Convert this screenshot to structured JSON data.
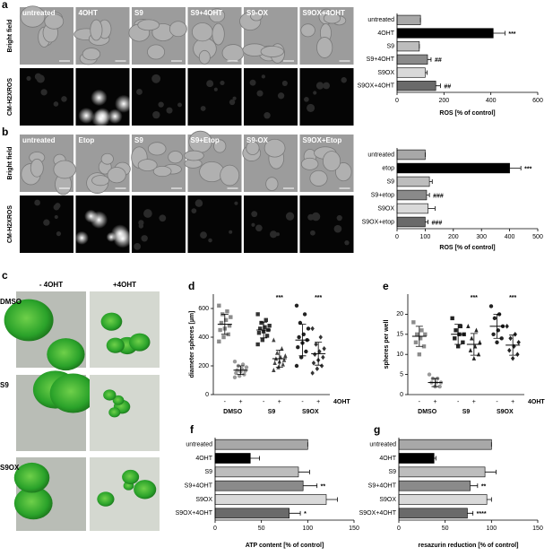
{
  "figure": {
    "a": {
      "label": "a",
      "row_labels": [
        "Bright field",
        "CM-H2XROS"
      ],
      "column_labels": [
        "untreated",
        "4OHT",
        "S9",
        "S9+4OHT",
        "S9-OX",
        "S9OX+4OHT"
      ]
    },
    "b": {
      "label": "b",
      "row_labels": [
        "Bright field",
        "CM-H2XROS"
      ],
      "column_labels": [
        "untreated",
        "Etop",
        "S9",
        "S9+Etop",
        "S9-OX",
        "S9OX+Etop"
      ]
    },
    "c": {
      "label": "c",
      "column_labels": [
        "- 4OHT",
        "+4OHT"
      ],
      "row_labels": [
        "DMSO",
        "S9",
        "S9OX"
      ]
    }
  },
  "chart_data": [
    {
      "type": "bar",
      "orientation": "horizontal",
      "categories": [
        "untreated",
        "4OHT",
        "S9",
        "S9+4OHT",
        "S9OX",
        "S9OX+4OHT"
      ],
      "values": [
        100,
        410,
        95,
        130,
        120,
        165
      ],
      "errors": [
        0,
        50,
        0,
        15,
        8,
        20
      ],
      "annotations": [
        null,
        "***",
        null,
        "##",
        null,
        "##"
      ],
      "colors": [
        "#a8a8a8",
        "#000000",
        "#bdbdbd",
        "#8a8a8a",
        "#d9d9d9",
        "#6a6a6a"
      ],
      "xlim": [
        0,
        600
      ],
      "xticks": [
        0,
        200,
        400,
        600
      ],
      "xlabel": "ROS [% of control]"
    },
    {
      "type": "bar",
      "orientation": "horizontal",
      "categories": [
        "untreated",
        "etop",
        "S9",
        "S9+etop",
        "S9OX",
        "S9OX+etop"
      ],
      "values": [
        100,
        400,
        115,
        105,
        110,
        100
      ],
      "errors": [
        0,
        40,
        10,
        10,
        25,
        10
      ],
      "annotations": [
        null,
        "***",
        null,
        "###",
        null,
        "###"
      ],
      "colors": [
        "#a8a8a8",
        "#000000",
        "#bdbdbd",
        "#8a8a8a",
        "#d9d9d9",
        "#6a6a6a"
      ],
      "xlim": [
        0,
        500
      ],
      "xticks": [
        0,
        100,
        200,
        300,
        400,
        500
      ],
      "xlabel": "ROS [% of control]"
    },
    {
      "type": "dot",
      "panel_label": "d",
      "ylabel": "diameter spheres [µm]",
      "categories": [
        "-",
        "+",
        "-",
        "+",
        "-",
        "+"
      ],
      "groups": [
        "DMSO",
        "S9",
        "S9OX"
      ],
      "factor_label": "4OHT",
      "points": [
        [
          620,
          580,
          560,
          540,
          520,
          500,
          480,
          460,
          450,
          420,
          400,
          370
        ],
        [
          230,
          210,
          200,
          190,
          180,
          170,
          165,
          160,
          150,
          140,
          130,
          120
        ],
        [
          560,
          520,
          500,
          480,
          470,
          460,
          450,
          440,
          430,
          410,
          380,
          350
        ],
        [
          380,
          320,
          290,
          270,
          260,
          250,
          240,
          230,
          220,
          210,
          190,
          170
        ],
        [
          620,
          560,
          500,
          460,
          420,
          400,
          380,
          360,
          330,
          300,
          260,
          200
        ],
        [
          460,
          400,
          350,
          320,
          300,
          280,
          260,
          240,
          220,
          200,
          180,
          150
        ]
      ],
      "means": [
        490,
        170,
        450,
        250,
        380,
        285
      ],
      "sd": [
        70,
        30,
        55,
        60,
        110,
        80
      ],
      "markers": [
        "square",
        "circle",
        "square",
        "triangle",
        "circle",
        "diamond"
      ],
      "colors": [
        "#8c8c8c",
        "#9a9a9a",
        "#333333",
        "#444444",
        "#222222",
        "#333333"
      ],
      "annotations": [
        null,
        null,
        null,
        "***",
        null,
        "***"
      ],
      "ylim": [
        0,
        700
      ],
      "yticks": [
        0,
        200,
        400,
        600
      ]
    },
    {
      "type": "dot",
      "panel_label": "e",
      "ylabel": "spheres per well",
      "categories": [
        "-",
        "+",
        "-",
        "+",
        "-",
        "+"
      ],
      "groups": [
        "DMSO",
        "S9",
        "S9OX"
      ],
      "factor_label": "4OHT",
      "points": [
        [
          18,
          16,
          15,
          15,
          14,
          13,
          12,
          10
        ],
        [
          5,
          4,
          4,
          3,
          3,
          3,
          2,
          2
        ],
        [
          19,
          17,
          16,
          15,
          15,
          14,
          13,
          12
        ],
        [
          17,
          16,
          14,
          13,
          12,
          11,
          10,
          9
        ],
        [
          22,
          20,
          19,
          17,
          16,
          15,
          14,
          13
        ],
        [
          17,
          15,
          14,
          13,
          12,
          11,
          10,
          9
        ]
      ],
      "means": [
        14.5,
        3,
        15,
        12.5,
        17,
        12.3
      ],
      "sd": [
        2.5,
        1,
        2.5,
        2.7,
        3,
        2.5
      ],
      "markers": [
        "square",
        "circle",
        "square",
        "triangle",
        "circle",
        "diamond"
      ],
      "colors": [
        "#8c8c8c",
        "#9a9a9a",
        "#222222",
        "#222222",
        "#222222",
        "#222222"
      ],
      "annotations": [
        null,
        null,
        null,
        "***",
        null,
        "***"
      ],
      "ylim": [
        0,
        25
      ],
      "yticks": [
        0,
        5,
        10,
        15,
        20
      ]
    },
    {
      "type": "bar",
      "orientation": "horizontal",
      "panel_label": "f",
      "categories": [
        "untreated",
        "4OHT",
        "S9",
        "S9+4OHT",
        "S9OX",
        "S9OX+4OHT"
      ],
      "values": [
        100,
        38,
        90,
        95,
        120,
        80
      ],
      "errors": [
        0,
        10,
        12,
        15,
        12,
        12
      ],
      "annotations": [
        null,
        null,
        null,
        "**",
        null,
        "*"
      ],
      "colors": [
        "#a8a8a8",
        "#000000",
        "#bdbdbd",
        "#8a8a8a",
        "#d9d9d9",
        "#6a6a6a"
      ],
      "xlim": [
        0,
        150
      ],
      "xticks": [
        0,
        50,
        100,
        150
      ],
      "xlabel": "ATP content [% of control]"
    },
    {
      "type": "bar",
      "orientation": "horizontal",
      "panel_label": "g",
      "categories": [
        "untreated",
        "4OHT",
        "S9",
        "S9+4OHT",
        "S9OX",
        "S9OX+4OHT"
      ],
      "values": [
        100,
        38,
        93,
        77,
        95,
        74
      ],
      "errors": [
        0,
        2,
        12,
        8,
        5,
        6
      ],
      "annotations": [
        null,
        null,
        null,
        "**",
        null,
        "****"
      ],
      "colors": [
        "#a8a8a8",
        "#000000",
        "#bdbdbd",
        "#8a8a8a",
        "#d9d9d9",
        "#6a6a6a"
      ],
      "xlim": [
        0,
        150
      ],
      "xticks": [
        0,
        50,
        100,
        150
      ],
      "xlabel": "resazurin reduction [% of control]"
    }
  ]
}
